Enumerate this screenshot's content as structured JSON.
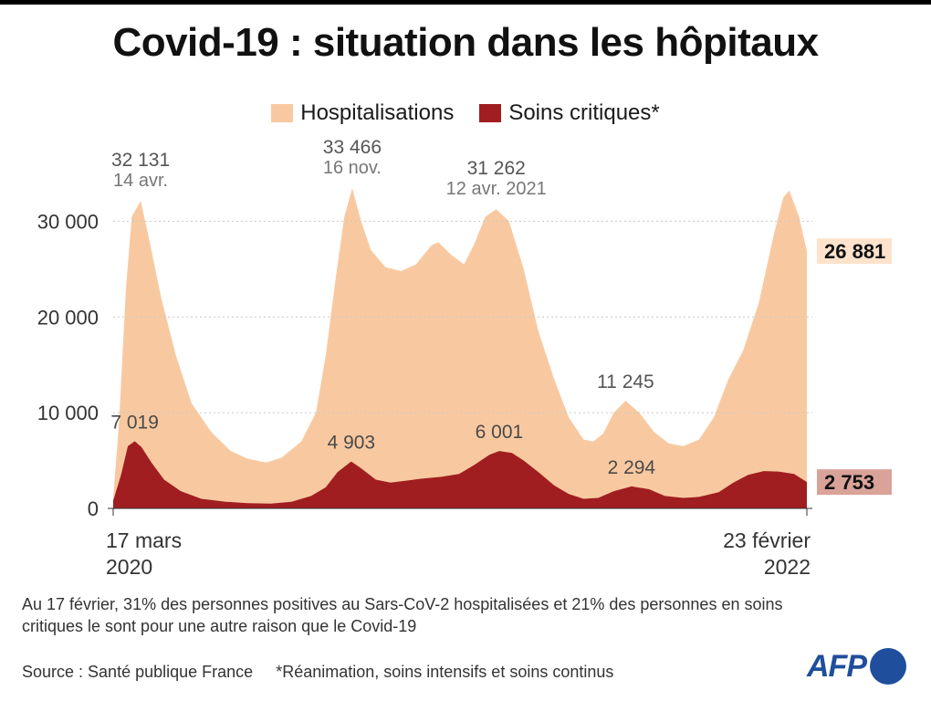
{
  "title": "Covid-19 : situation dans les hôpitaux",
  "colors": {
    "hospitalisations": "#f8c9a0",
    "soins_critiques": "#a01e20",
    "grid": "#c8c8c8"
  },
  "chart_data": {
    "type": "area",
    "title": "Covid-19 : situation dans les hôpitaux",
    "ylim": [
      0,
      35000
    ],
    "yticks": [
      0,
      10000,
      20000,
      30000
    ],
    "ytick_labels": [
      "0",
      "10 000",
      "20 000",
      "30 000"
    ],
    "grid": true,
    "legend_position": "top-center",
    "xrange": [
      "2020-03-17",
      "2022-02-23"
    ],
    "x_start_label": [
      "17 mars",
      "2020"
    ],
    "x_end_label": [
      "23 février",
      "2022"
    ],
    "series": [
      {
        "name": "Hospitalisations",
        "values": [
          [
            "2020-03-17",
            1000
          ],
          [
            "2020-03-23",
            9000
          ],
          [
            "2020-03-30",
            23000
          ],
          [
            "2020-04-05",
            30500
          ],
          [
            "2020-04-14",
            32131
          ],
          [
            "2020-04-22",
            28500
          ],
          [
            "2020-05-05",
            22000
          ],
          [
            "2020-05-20",
            16000
          ],
          [
            "2020-06-05",
            11000
          ],
          [
            "2020-06-25",
            8000
          ],
          [
            "2020-07-15",
            6000
          ],
          [
            "2020-08-01",
            5200
          ],
          [
            "2020-08-20",
            4800
          ],
          [
            "2020-09-05",
            5300
          ],
          [
            "2020-09-25",
            7000
          ],
          [
            "2020-10-10",
            10000
          ],
          [
            "2020-10-20",
            16000
          ],
          [
            "2020-10-30",
            24000
          ],
          [
            "2020-11-08",
            30500
          ],
          [
            "2020-11-16",
            33466
          ],
          [
            "2020-11-25",
            30000
          ],
          [
            "2020-12-05",
            27000
          ],
          [
            "2020-12-20",
            25200
          ],
          [
            "2021-01-05",
            24800
          ],
          [
            "2021-01-20",
            25500
          ],
          [
            "2021-02-05",
            27500
          ],
          [
            "2021-02-12",
            27800
          ],
          [
            "2021-02-25",
            26500
          ],
          [
            "2021-03-10",
            25500
          ],
          [
            "2021-03-20",
            27500
          ],
          [
            "2021-04-01",
            30500
          ],
          [
            "2021-04-12",
            31262
          ],
          [
            "2021-04-25",
            30000
          ],
          [
            "2021-05-10",
            25000
          ],
          [
            "2021-05-25",
            18500
          ],
          [
            "2021-06-10",
            13500
          ],
          [
            "2021-06-25",
            9500
          ],
          [
            "2021-07-10",
            7200
          ],
          [
            "2021-07-20",
            7000
          ],
          [
            "2021-07-30",
            7800
          ],
          [
            "2021-08-10",
            10000
          ],
          [
            "2021-08-22",
            11245
          ],
          [
            "2021-09-05",
            10000
          ],
          [
            "2021-09-20",
            8000
          ],
          [
            "2021-10-05",
            6800
          ],
          [
            "2021-10-20",
            6500
          ],
          [
            "2021-11-05",
            7200
          ],
          [
            "2021-11-20",
            9500
          ],
          [
            "2021-12-05",
            13500
          ],
          [
            "2021-12-20",
            16500
          ],
          [
            "2022-01-05",
            21500
          ],
          [
            "2022-01-20",
            28500
          ],
          [
            "2022-01-30",
            32500
          ],
          [
            "2022-02-05",
            33200
          ],
          [
            "2022-02-15",
            30500
          ],
          [
            "2022-02-23",
            26881
          ]
        ]
      },
      {
        "name": "Soins critiques*",
        "values": [
          [
            "2020-03-17",
            800
          ],
          [
            "2020-03-25",
            3500
          ],
          [
            "2020-04-01",
            6500
          ],
          [
            "2020-04-08",
            7019
          ],
          [
            "2020-04-15",
            6400
          ],
          [
            "2020-04-25",
            4800
          ],
          [
            "2020-05-08",
            3000
          ],
          [
            "2020-05-25",
            1800
          ],
          [
            "2020-06-15",
            1000
          ],
          [
            "2020-07-10",
            700
          ],
          [
            "2020-08-01",
            550
          ],
          [
            "2020-08-25",
            500
          ],
          [
            "2020-09-15",
            700
          ],
          [
            "2020-10-05",
            1300
          ],
          [
            "2020-10-20",
            2200
          ],
          [
            "2020-11-01",
            3800
          ],
          [
            "2020-11-15",
            4903
          ],
          [
            "2020-11-25",
            4200
          ],
          [
            "2020-12-10",
            3000
          ],
          [
            "2020-12-25",
            2700
          ],
          [
            "2021-01-10",
            2900
          ],
          [
            "2021-01-25",
            3100
          ],
          [
            "2021-02-15",
            3300
          ],
          [
            "2021-03-05",
            3600
          ],
          [
            "2021-03-20",
            4500
          ],
          [
            "2021-04-05",
            5600
          ],
          [
            "2021-04-15",
            6001
          ],
          [
            "2021-04-28",
            5800
          ],
          [
            "2021-05-10",
            5000
          ],
          [
            "2021-05-25",
            3800
          ],
          [
            "2021-06-10",
            2400
          ],
          [
            "2021-06-25",
            1500
          ],
          [
            "2021-07-10",
            1000
          ],
          [
            "2021-07-25",
            1100
          ],
          [
            "2021-08-10",
            1800
          ],
          [
            "2021-08-28",
            2294
          ],
          [
            "2021-09-15",
            2000
          ],
          [
            "2021-10-01",
            1300
          ],
          [
            "2021-10-20",
            1100
          ],
          [
            "2021-11-05",
            1200
          ],
          [
            "2021-11-25",
            1700
          ],
          [
            "2021-12-10",
            2700
          ],
          [
            "2021-12-25",
            3500
          ],
          [
            "2022-01-10",
            3900
          ],
          [
            "2022-01-25",
            3850
          ],
          [
            "2022-02-10",
            3600
          ],
          [
            "2022-02-23",
            2753
          ]
        ]
      }
    ],
    "annotations": [
      {
        "series": 0,
        "x": "2020-04-14",
        "value": "32 131",
        "date": "14 avr."
      },
      {
        "series": 0,
        "x": "2020-11-16",
        "value": "33 466",
        "date": "16 nov."
      },
      {
        "series": 0,
        "x": "2021-04-12",
        "value": "31 262",
        "date": "12 avr. 2021"
      },
      {
        "series": 0,
        "x": "2021-08-22",
        "value": "11 245",
        "date": ""
      },
      {
        "series": 1,
        "x": "2020-04-08",
        "value": "7 019",
        "date": ""
      },
      {
        "series": 1,
        "x": "2020-11-15",
        "value": "4 903",
        "date": ""
      },
      {
        "series": 1,
        "x": "2021-04-15",
        "value": "6 001",
        "date": ""
      },
      {
        "series": 1,
        "x": "2021-08-28",
        "value": "2 294",
        "date": ""
      }
    ],
    "last_values": [
      {
        "series": 0,
        "label": "26 881"
      },
      {
        "series": 1,
        "label": "2 753"
      }
    ]
  },
  "note": "Au 17 février, 31% des personnes positives au Sars-CoV-2 hospitalisées et 21% des personnes en soins critiques le sont pour une autre raison que le Covid-19",
  "source": "Source : Santé publique France",
  "footnote": "*Réanimation, soins intensifs et soins continus",
  "logo_text": "AFP"
}
